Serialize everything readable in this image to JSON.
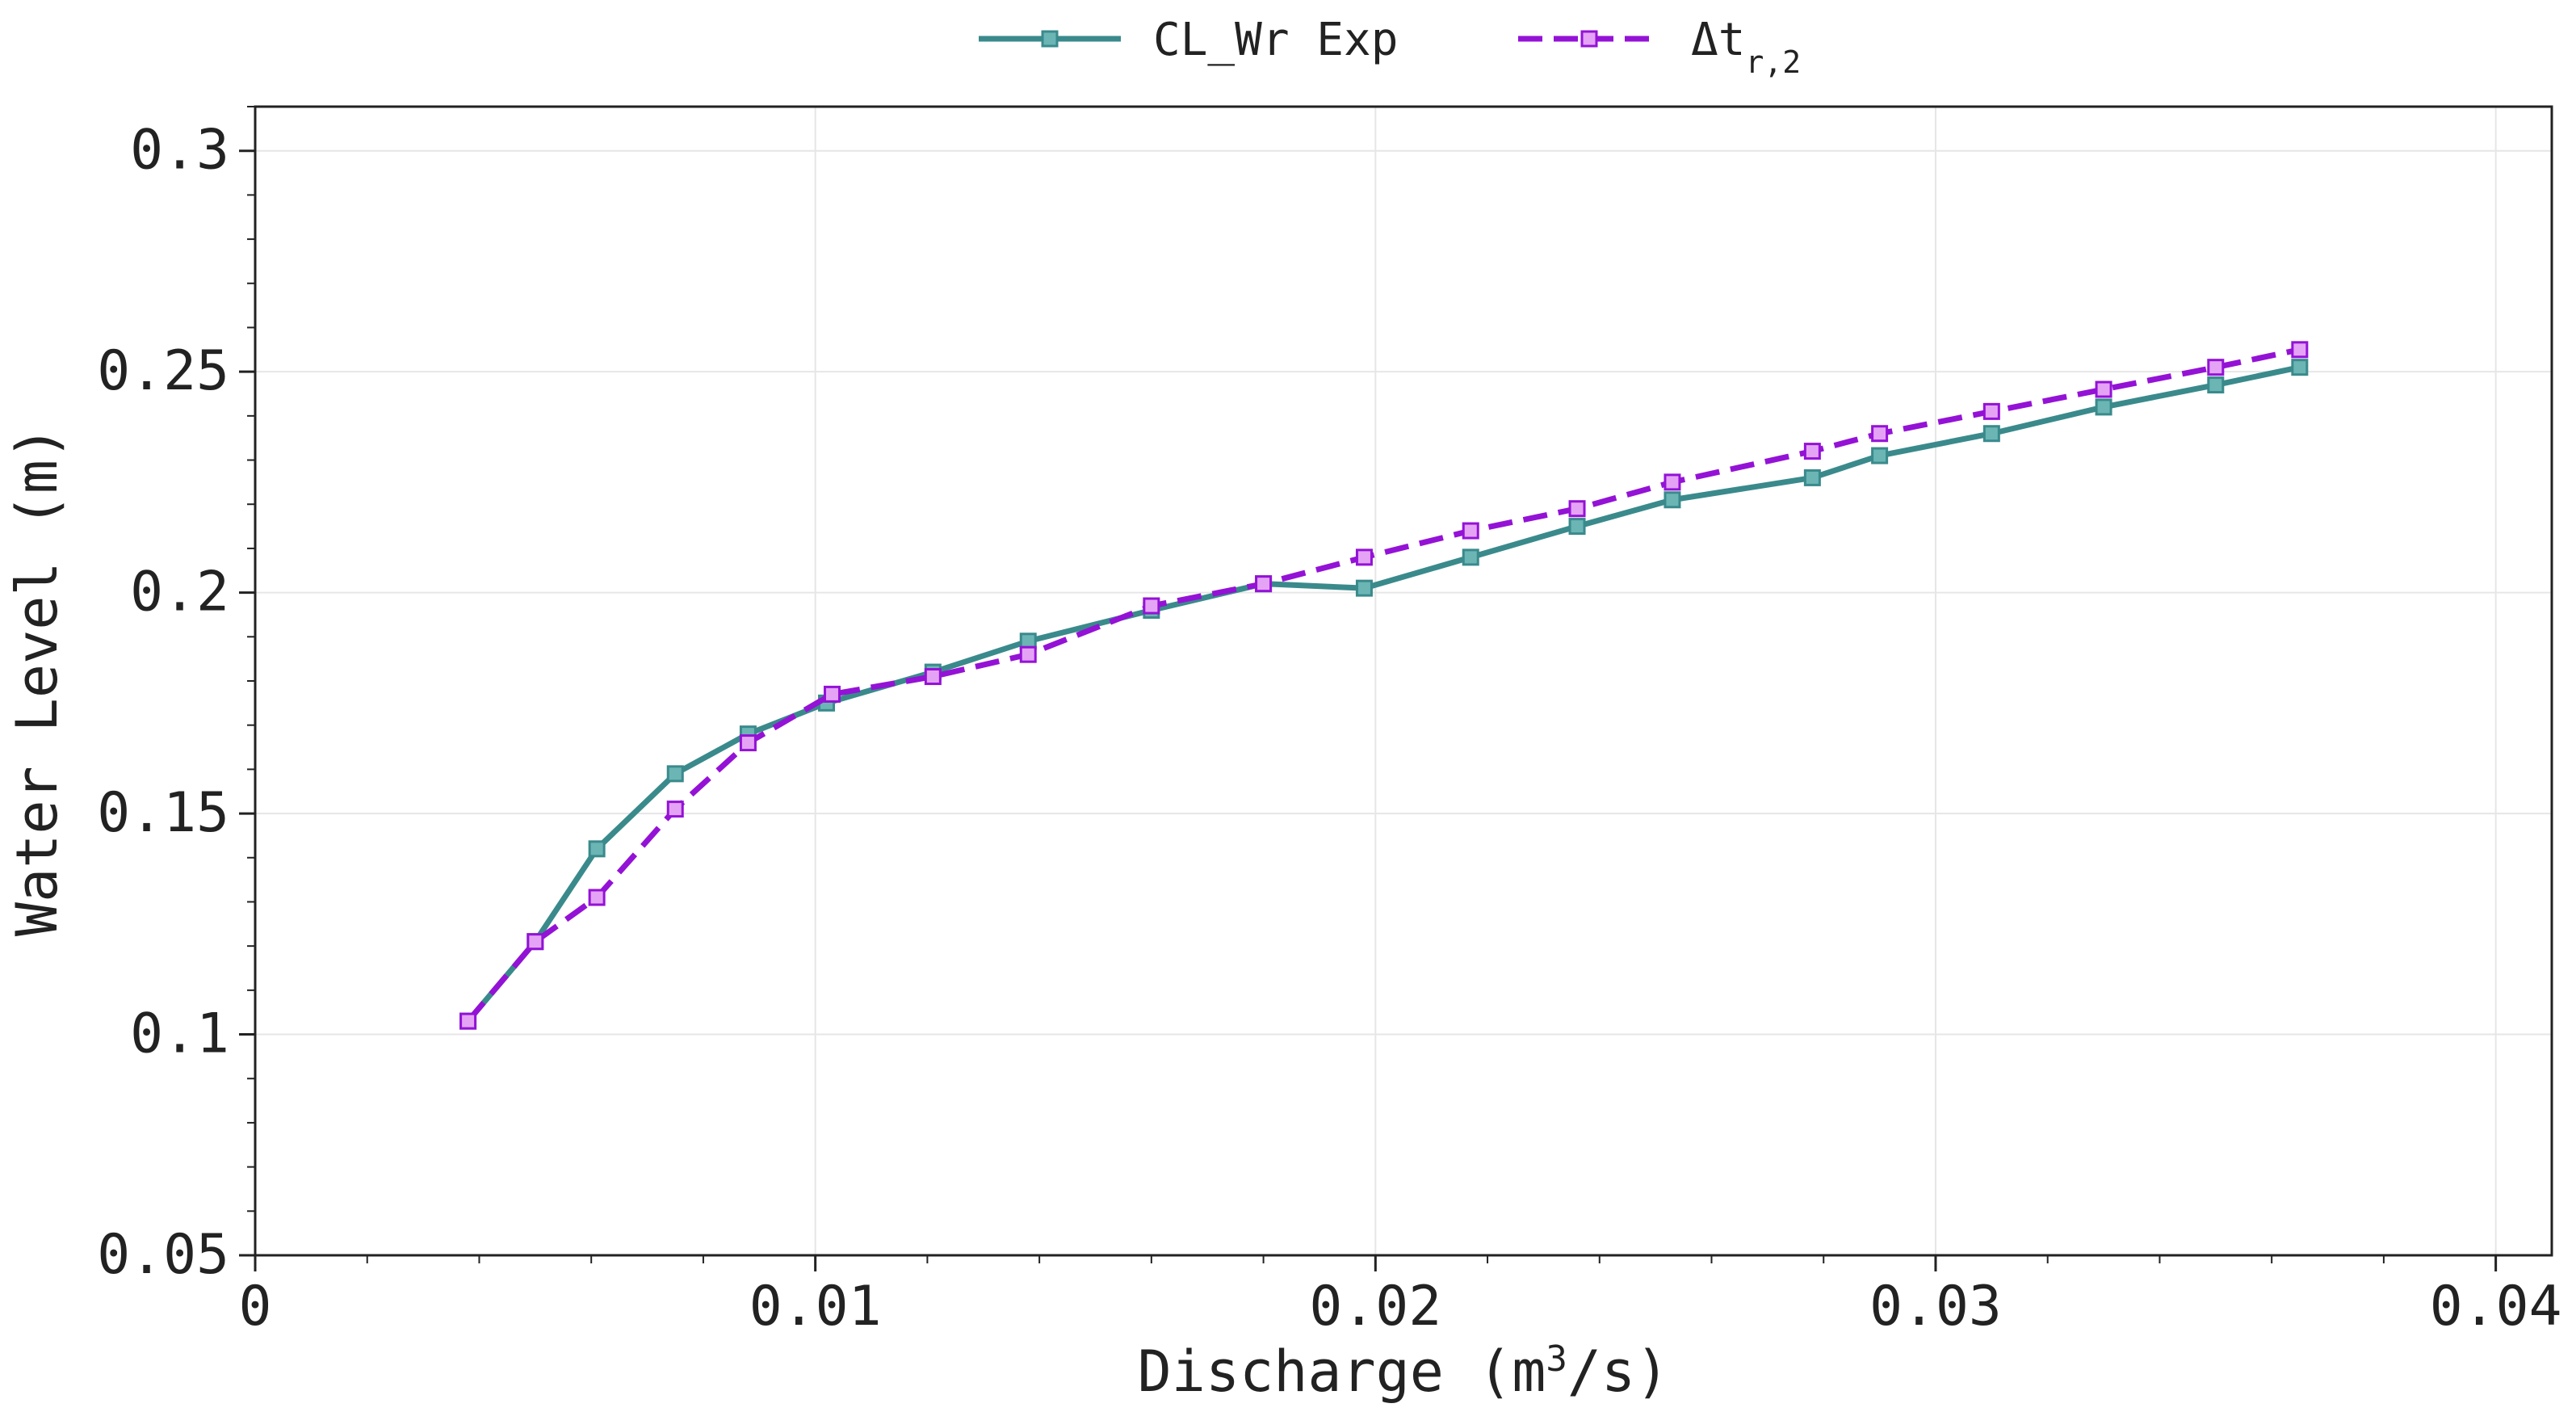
{
  "chart_data": {
    "type": "line",
    "title": "",
    "xlabel": "Discharge (m",
    "xlabel_sup": "3",
    "xlabel_tail": "/s)",
    "ylabel": "Water Level (m)",
    "xlim": [
      0,
      0.041
    ],
    "ylim": [
      0.05,
      0.31
    ],
    "xticks": [
      0,
      0.01,
      0.02,
      0.03,
      0.04
    ],
    "xtick_labels": [
      "0",
      "0.01",
      "0.02",
      "0.03",
      "0.04"
    ],
    "xminor_step": 0.002,
    "yticks": [
      0.05,
      0.1,
      0.15,
      0.2,
      0.25,
      0.3
    ],
    "ytick_labels": [
      "0.05",
      "0.1",
      "0.15",
      "0.2",
      "0.25",
      "0.3"
    ],
    "yminor_step": 0.01,
    "grid": true,
    "legend": "top-center",
    "series": [
      {
        "name": "CL_Wr Exp",
        "color": "#3a8a8c",
        "marker_fill": "#6bb5b5",
        "dashed": false,
        "x": [
          0.0038,
          0.005,
          0.0061,
          0.0075,
          0.0088,
          0.0102,
          0.0121,
          0.0138,
          0.016,
          0.018,
          0.0198,
          0.0217,
          0.0236,
          0.0253,
          0.0278,
          0.029,
          0.031,
          0.033,
          0.035,
          0.0365
        ],
        "y": [
          0.103,
          0.121,
          0.142,
          0.159,
          0.168,
          0.175,
          0.182,
          0.189,
          0.196,
          0.202,
          0.201,
          0.208,
          0.215,
          0.221,
          0.226,
          0.231,
          0.236,
          0.242,
          0.247,
          0.251
        ]
      },
      {
        "name": "Δt",
        "name_sub": "r,2",
        "color": "#9412d6",
        "marker_fill": "#e5a3f5",
        "dashed": true,
        "x": [
          0.0038,
          0.005,
          0.0061,
          0.0075,
          0.0088,
          0.0103,
          0.0121,
          0.0138,
          0.016,
          0.018,
          0.0198,
          0.0217,
          0.0236,
          0.0253,
          0.0278,
          0.029,
          0.031,
          0.033,
          0.035,
          0.0365
        ],
        "y": [
          0.103,
          0.121,
          0.131,
          0.151,
          0.166,
          0.177,
          0.181,
          0.186,
          0.197,
          0.202,
          0.208,
          0.214,
          0.219,
          0.225,
          0.232,
          0.236,
          0.241,
          0.246,
          0.251,
          0.255
        ]
      }
    ]
  }
}
